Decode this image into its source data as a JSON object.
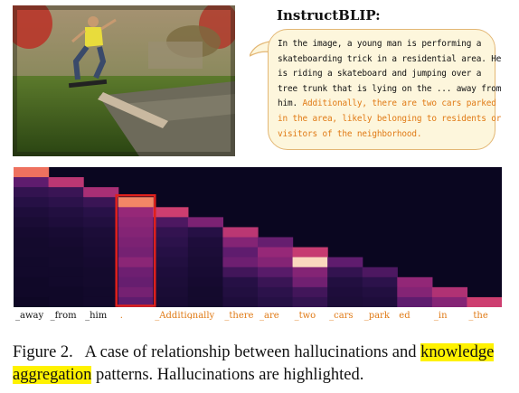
{
  "figure": {
    "model_title": "InstructBLIP:",
    "response": {
      "normal_lines": [
        "In the image, a young man is performing a",
        "skateboarding trick in a residential area. He",
        "is riding a skateboard and jumping over a",
        "tree trunk that is lying on the ... away from",
        "him."
      ],
      "hallucinated_lines": [
        "Additionally, there are two cars parked",
        "in the area, likely belonging to residents or",
        "visitors of the neighborhood."
      ],
      "hallucination_color": "#e07a15"
    },
    "tokens": [
      {
        "text": "_away",
        "hallucinated": false
      },
      {
        "text": "_from",
        "hallucinated": false
      },
      {
        "text": "_him",
        "hallucinated": false
      },
      {
        "text": ".",
        "hallucinated": true
      },
      {
        "text": "_Additionally",
        "hallucinated": true
      },
      {
        "text": ",",
        "hallucinated": true
      },
      {
        "text": "_there",
        "hallucinated": true
      },
      {
        "text": "_are",
        "hallucinated": true
      },
      {
        "text": "_two",
        "hallucinated": true
      },
      {
        "text": "_cars",
        "hallucinated": true
      },
      {
        "text": "_park",
        "hallucinated": true
      },
      {
        "text": "ed",
        "hallucinated": true
      },
      {
        "text": "_in",
        "hallucinated": true
      },
      {
        "text": "_the",
        "hallucinated": true
      }
    ],
    "highlight_box_color": "#e0201c",
    "caption": {
      "label": "Figure 2.",
      "text_1": "A case of relationship between hallucinations and",
      "marked": "knowledge aggregation",
      "text_2": "patterns. Hallucinations are highlighted."
    }
  },
  "chart_data": {
    "type": "heatmap",
    "columns": [
      "_away",
      "_from",
      "_him",
      ".",
      "_Additionally",
      ",",
      "_there",
      "_are",
      "_two",
      "_cars",
      "_park",
      "ed",
      "_in",
      "_the"
    ],
    "rows": 14,
    "values": [
      [
        0.75,
        0,
        0,
        0,
        0,
        0,
        0,
        0,
        0,
        0,
        0,
        0,
        0,
        0
      ],
      [
        0.3,
        0.55,
        0,
        0,
        0,
        0,
        0,
        0,
        0,
        0,
        0,
        0,
        0,
        0
      ],
      [
        0.18,
        0.2,
        0.5,
        0,
        0,
        0,
        0,
        0,
        0,
        0,
        0,
        0,
        0,
        0
      ],
      [
        0.14,
        0.16,
        0.2,
        0.8,
        0,
        0,
        0,
        0,
        0,
        0,
        0,
        0,
        0,
        0
      ],
      [
        0.1,
        0.12,
        0.15,
        0.45,
        0.6,
        0,
        0,
        0,
        0,
        0,
        0,
        0,
        0,
        0
      ],
      [
        0.08,
        0.1,
        0.12,
        0.42,
        0.25,
        0.38,
        0,
        0,
        0,
        0,
        0,
        0,
        0,
        0
      ],
      [
        0.06,
        0.07,
        0.09,
        0.4,
        0.18,
        0.14,
        0.55,
        0,
        0,
        0,
        0,
        0,
        0,
        0
      ],
      [
        0.05,
        0.06,
        0.08,
        0.38,
        0.16,
        0.1,
        0.4,
        0.32,
        0,
        0,
        0,
        0,
        0,
        0
      ],
      [
        0.05,
        0.05,
        0.07,
        0.36,
        0.14,
        0.09,
        0.3,
        0.45,
        0.58,
        0,
        0,
        0,
        0,
        0
      ],
      [
        0.04,
        0.05,
        0.06,
        0.42,
        0.12,
        0.08,
        0.34,
        0.4,
        0.95,
        0.3,
        0,
        0,
        0,
        0
      ],
      [
        0.04,
        0.04,
        0.05,
        0.34,
        0.1,
        0.07,
        0.22,
        0.28,
        0.4,
        0.18,
        0.25,
        0,
        0,
        0
      ],
      [
        0.03,
        0.04,
        0.05,
        0.32,
        0.09,
        0.06,
        0.14,
        0.2,
        0.35,
        0.12,
        0.16,
        0.44,
        0,
        0
      ],
      [
        0.03,
        0.03,
        0.04,
        0.36,
        0.08,
        0.05,
        0.12,
        0.16,
        0.22,
        0.1,
        0.12,
        0.4,
        0.52,
        0
      ],
      [
        0.02,
        0.03,
        0.04,
        0.3,
        0.07,
        0.05,
        0.1,
        0.14,
        0.18,
        0.09,
        0.1,
        0.3,
        0.4,
        0.6
      ]
    ],
    "highlight_column": ".",
    "colormap": "magma"
  }
}
